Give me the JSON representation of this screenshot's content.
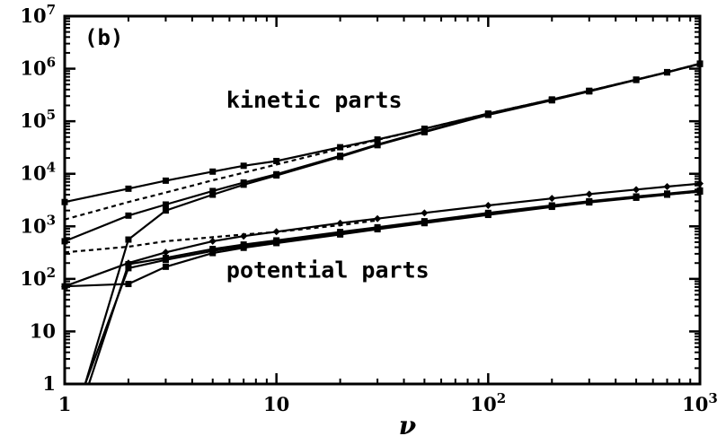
{
  "chart_data": {
    "type": "line",
    "panel_label": "(b)",
    "xlabel": "ν",
    "ylabel": "",
    "x_scale": "log",
    "y_scale": "log",
    "xlim": [
      1,
      1000
    ],
    "ylim": [
      1,
      10000000
    ],
    "x_ticks": [
      {
        "value": 1,
        "base": "1",
        "exp": ""
      },
      {
        "value": 10,
        "base": "10",
        "exp": ""
      },
      {
        "value": 100,
        "base": "10",
        "exp": "2"
      },
      {
        "value": 1000,
        "base": "10",
        "exp": "3"
      }
    ],
    "y_ticks": [
      {
        "value": 1,
        "base": "1",
        "exp": ""
      },
      {
        "value": 10,
        "base": "10",
        "exp": ""
      },
      {
        "value": 100,
        "base": "10",
        "exp": "2"
      },
      {
        "value": 1000,
        "base": "10",
        "exp": "3"
      },
      {
        "value": 10000,
        "base": "10",
        "exp": "4"
      },
      {
        "value": 100000,
        "base": "10",
        "exp": "5"
      },
      {
        "value": 1000000,
        "base": "10",
        "exp": "6"
      },
      {
        "value": 10000000,
        "base": "10",
        "exp": "7"
      }
    ],
    "annotations": [
      {
        "text": "kinetic parts",
        "x": 5.8,
        "y": 180000
      },
      {
        "text": "potential parts",
        "x": 5.8,
        "y": 105
      }
    ],
    "series": [
      {
        "group": "kinetic",
        "style": "solid",
        "marker": "square",
        "x": [
          1,
          2,
          3,
          5,
          7,
          10,
          20,
          30,
          50,
          100,
          200,
          300,
          500,
          700,
          1000
        ],
        "y": [
          2900,
          5200,
          7400,
          11000,
          14200,
          17500,
          32000,
          45000,
          72000,
          140000,
          260000,
          380000,
          620000,
          860000,
          1250000
        ]
      },
      {
        "group": "kinetic",
        "style": "solid",
        "marker": "square",
        "x": [
          1,
          2,
          3,
          5,
          7,
          10,
          20,
          30,
          50,
          100,
          200,
          300,
          500,
          700,
          1000
        ],
        "y": [
          520,
          1600,
          2600,
          4700,
          6800,
          9800,
          22000,
          36000,
          64000,
          135000,
          255000,
          375000,
          615000,
          855000,
          1240000
        ]
      },
      {
        "group": "kinetic",
        "style": "solid",
        "marker": "square",
        "x": [
          1.25,
          2,
          3,
          5,
          7,
          10,
          20,
          30,
          50,
          100,
          200,
          300,
          500,
          700,
          1000
        ],
        "y": [
          1,
          560,
          2000,
          4000,
          6200,
          9300,
          21000,
          35000,
          62000,
          132000,
          250000,
          370000,
          610000,
          850000,
          1230000
        ]
      },
      {
        "group": "kinetic",
        "style": "dashed",
        "marker": "none",
        "x": [
          1,
          2,
          3,
          5,
          7,
          10,
          20,
          30,
          50,
          100,
          200,
          300,
          500,
          700,
          1000
        ],
        "y": [
          1350,
          2900,
          4400,
          7500,
          10500,
          15000,
          30000,
          44000,
          72000,
          140000,
          260000,
          380000,
          620000,
          860000,
          1250000
        ]
      },
      {
        "group": "potential",
        "style": "solid",
        "marker": "diamond",
        "x": [
          1,
          2,
          3,
          5,
          7,
          10,
          20,
          30,
          50,
          100,
          200,
          300,
          500,
          700,
          1000
        ],
        "y": [
          72,
          200,
          320,
          520,
          650,
          790,
          1150,
          1400,
          1800,
          2500,
          3400,
          4100,
          5000,
          5700,
          6500
        ]
      },
      {
        "group": "potential",
        "style": "solid",
        "marker": "square",
        "x": [
          1,
          2,
          3,
          5,
          7,
          10,
          20,
          30,
          50,
          100,
          200,
          300,
          500,
          700,
          1000
        ],
        "y": [
          72,
          80,
          170,
          310,
          390,
          480,
          700,
          880,
          1150,
          1650,
          2350,
          2850,
          3500,
          4000,
          4600
        ]
      },
      {
        "group": "potential",
        "style": "solid",
        "marker": "square",
        "x": [
          1.3,
          2,
          3,
          5,
          7,
          10,
          20,
          30,
          50,
          100,
          200,
          300,
          500,
          700,
          1000
        ],
        "y": [
          1,
          190,
          250,
          370,
          450,
          540,
          780,
          960,
          1250,
          1800,
          2500,
          3000,
          3700,
          4200,
          4800
        ]
      },
      {
        "group": "potential",
        "style": "solid",
        "marker": "square",
        "x": [
          1.25,
          2,
          3,
          5,
          7,
          10,
          20,
          30,
          50,
          100,
          200,
          300,
          500,
          700,
          1000
        ],
        "y": [
          1,
          160,
          230,
          340,
          420,
          500,
          720,
          900,
          1180,
          1700,
          2400,
          2900,
          3550,
          4050,
          4600
        ]
      },
      {
        "group": "potential",
        "style": "dashed",
        "marker": "none",
        "x": [
          1,
          2,
          3,
          5,
          7,
          10,
          20,
          30
        ],
        "y": [
          320,
          410,
          520,
          620,
          700,
          780,
          1050,
          1300
        ]
      }
    ]
  }
}
